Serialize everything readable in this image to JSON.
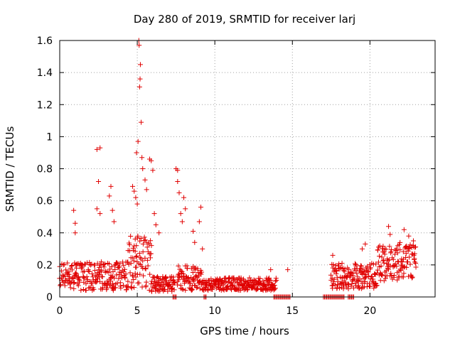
{
  "chart_data": {
    "type": "scatter",
    "title": "Day 280 of 2019, SRMTID for receiver larj",
    "xlabel": "GPS time / hours",
    "ylabel": "SRMTID / TECUs",
    "xlim": [
      0,
      24.2
    ],
    "ylim": [
      0,
      1.6
    ],
    "xticks": [
      0,
      5,
      10,
      15,
      20
    ],
    "xtick_labels": [
      "0",
      "5",
      "10",
      "15",
      "20"
    ],
    "yticks": [
      0,
      0.2,
      0.4,
      0.6,
      0.8,
      1.0,
      1.2,
      1.4,
      1.6
    ],
    "ytick_labels": [
      "0",
      "0.2",
      "0.4",
      "0.6",
      "0.8",
      "1",
      "1.2",
      "1.4",
      "1.6"
    ],
    "grid": true,
    "marker": "+",
    "color": "#e00000",
    "series": [
      {
        "name": "SRMTID",
        "segments": [
          {
            "x0": 0.0,
            "x1": 4.4,
            "base": 0.13,
            "spread": 0.09
          },
          {
            "x0": 4.4,
            "x1": 5.9,
            "base": 0.22,
            "spread": 0.18
          },
          {
            "x0": 5.9,
            "x1": 7.4,
            "base": 0.08,
            "spread": 0.05
          },
          {
            "x0": 7.6,
            "x1": 9.2,
            "base": 0.12,
            "spread": 0.08
          },
          {
            "x0": 9.2,
            "x1": 14.0,
            "base": 0.08,
            "spread": 0.04
          },
          {
            "x0": 17.5,
            "x1": 20.5,
            "base": 0.13,
            "spread": 0.08
          },
          {
            "x0": 20.5,
            "x1": 23.0,
            "base": 0.22,
            "spread": 0.12
          }
        ],
        "points": [
          [
            0.9,
            0.54
          ],
          [
            1.0,
            0.46
          ],
          [
            1.0,
            0.4
          ],
          [
            2.4,
            0.92
          ],
          [
            2.6,
            0.93
          ],
          [
            2.5,
            0.72
          ],
          [
            2.4,
            0.55
          ],
          [
            2.6,
            0.52
          ],
          [
            3.3,
            0.69
          ],
          [
            3.2,
            0.63
          ],
          [
            3.4,
            0.54
          ],
          [
            3.5,
            0.47
          ],
          [
            4.7,
            0.69
          ],
          [
            4.8,
            0.66
          ],
          [
            4.9,
            0.62
          ],
          [
            5.0,
            0.58
          ],
          [
            4.95,
            0.9
          ],
          [
            5.05,
            0.97
          ],
          [
            5.1,
            1.6
          ],
          [
            5.12,
            1.57
          ],
          [
            5.2,
            1.45
          ],
          [
            5.18,
            1.36
          ],
          [
            5.15,
            1.31
          ],
          [
            5.25,
            1.09
          ],
          [
            5.3,
            0.87
          ],
          [
            5.35,
            0.8
          ],
          [
            5.5,
            0.73
          ],
          [
            5.6,
            0.67
          ],
          [
            5.8,
            0.86
          ],
          [
            5.9,
            0.85
          ],
          [
            6.0,
            0.79
          ],
          [
            6.1,
            0.52
          ],
          [
            6.2,
            0.45
          ],
          [
            6.4,
            0.4
          ],
          [
            7.5,
            0.8
          ],
          [
            7.6,
            0.79
          ],
          [
            7.6,
            0.72
          ],
          [
            7.7,
            0.65
          ],
          [
            7.8,
            0.52
          ],
          [
            7.9,
            0.47
          ],
          [
            8.0,
            0.62
          ],
          [
            8.1,
            0.55
          ],
          [
            8.6,
            0.41
          ],
          [
            8.7,
            0.34
          ],
          [
            9.1,
            0.56
          ],
          [
            9.0,
            0.47
          ],
          [
            9.2,
            0.3
          ],
          [
            13.6,
            0.17
          ],
          [
            14.7,
            0.17
          ],
          [
            17.6,
            0.26
          ],
          [
            18.2,
            0.21
          ],
          [
            18.9,
            0.15
          ],
          [
            19.5,
            0.3
          ],
          [
            19.7,
            0.33
          ],
          [
            20.9,
            0.28
          ],
          [
            21.2,
            0.44
          ],
          [
            21.3,
            0.39
          ],
          [
            21.8,
            0.32
          ],
          [
            22.2,
            0.42
          ],
          [
            22.5,
            0.38
          ],
          [
            22.8,
            0.35
          ],
          [
            22.9,
            0.31
          ]
        ],
        "zero_runs": [
          [
            7.3,
            7.55
          ],
          [
            9.3,
            9.5
          ],
          [
            13.8,
            14.9
          ],
          [
            17.0,
            18.4
          ],
          [
            18.6,
            19.0
          ]
        ]
      }
    ]
  }
}
